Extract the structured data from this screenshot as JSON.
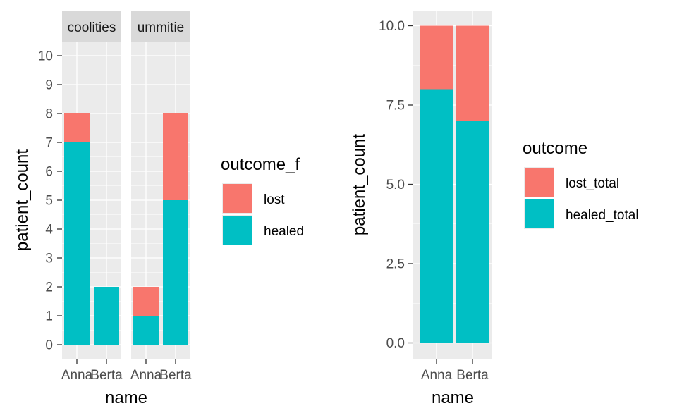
{
  "colors": {
    "lost": "#F8766D",
    "healed": "#00BFC4",
    "panel_bg": "#EBEBEB",
    "strip_bg": "#D9D9D9",
    "grid": "#FFFFFF",
    "tick_text": "#4D4D4D"
  },
  "chart_data": [
    {
      "type": "bar",
      "stacked": true,
      "facet_by": "group",
      "facets": [
        {
          "strip_label": "coolities",
          "categories": [
            "Anna",
            "Berta"
          ],
          "series": [
            {
              "name": "lost",
              "values": [
                1,
                0
              ]
            },
            {
              "name": "healed",
              "values": [
                7,
                2
              ]
            }
          ]
        },
        {
          "strip_label": "ummitie",
          "categories": [
            "Anna",
            "Berta"
          ],
          "series": [
            {
              "name": "lost",
              "values": [
                1,
                3
              ]
            },
            {
              "name": "healed",
              "values": [
                1,
                5
              ]
            }
          ]
        }
      ],
      "xlabel": "name",
      "ylabel": "patient_count",
      "ylim": [
        0,
        10
      ],
      "yticks": [
        "0",
        "1",
        "2",
        "3",
        "4",
        "5",
        "6",
        "7",
        "8",
        "9",
        "10"
      ],
      "grid": true,
      "legend": {
        "title": "outcome_f",
        "entries": [
          "lost",
          "healed"
        ],
        "placement": "right"
      }
    },
    {
      "type": "bar",
      "stacked": true,
      "categories": [
        "Anna",
        "Berta"
      ],
      "series": [
        {
          "name": "lost_total",
          "values": [
            2,
            3
          ]
        },
        {
          "name": "healed_total",
          "values": [
            8,
            7
          ]
        }
      ],
      "xlabel": "name",
      "ylabel": "patient_count",
      "ylim": [
        0,
        10
      ],
      "yticks": [
        "0.0",
        "2.5",
        "5.0",
        "7.5",
        "10.0"
      ],
      "grid": true,
      "legend": {
        "title": "outcome",
        "entries": [
          "lost_total",
          "healed_total"
        ],
        "placement": "right"
      }
    }
  ]
}
